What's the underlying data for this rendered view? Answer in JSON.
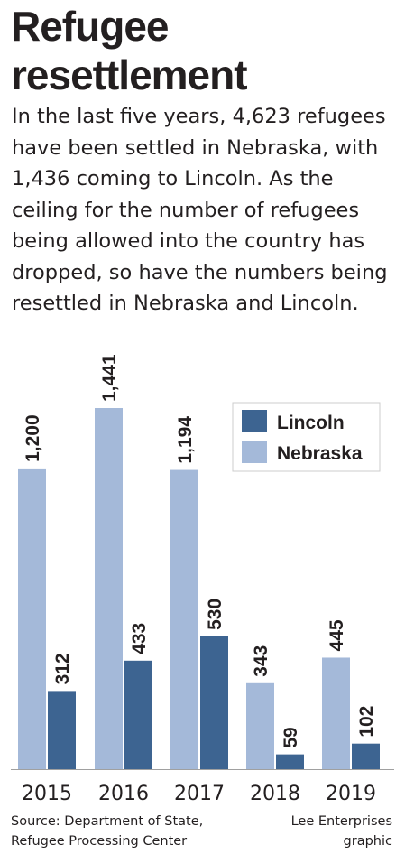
{
  "title": "Refugee resettlement",
  "description": "In the last five years, 4,623 refugees have been settled in Nebraska, with 1,436 coming to Lincoln. As the ceiling for the number of refugees being allowed into the country has dropped, so have the numbers being resettled in Nebraska and Lincoln.",
  "source_line1": "Source: Department of State,",
  "source_line2": "Refugee Processing Center",
  "credit_line1": "Lee Enterprises",
  "credit_line2": "graphic",
  "colors": {
    "nebraska": "#a4b9d9",
    "lincoln": "#3d6491",
    "text": "#231f20",
    "legend_border": "#cccccc"
  },
  "chart_data": {
    "type": "bar",
    "categories": [
      "2015",
      "2016",
      "2017",
      "2018",
      "2019"
    ],
    "series": [
      {
        "name": "Nebraska",
        "values": [
          1200,
          1441,
          1194,
          343,
          445
        ],
        "labels": [
          "1,200",
          "1,441",
          "1,194",
          "343",
          "445"
        ]
      },
      {
        "name": "Lincoln",
        "values": [
          312,
          433,
          530,
          59,
          102
        ],
        "labels": [
          "312",
          "433",
          "530",
          "59",
          "102"
        ]
      }
    ],
    "legend": [
      "Lincoln",
      "Nebraska"
    ],
    "legend_position": "top-right",
    "ylim": [
      0,
      1441
    ],
    "grid": false,
    "data_labels_rotated": true
  }
}
